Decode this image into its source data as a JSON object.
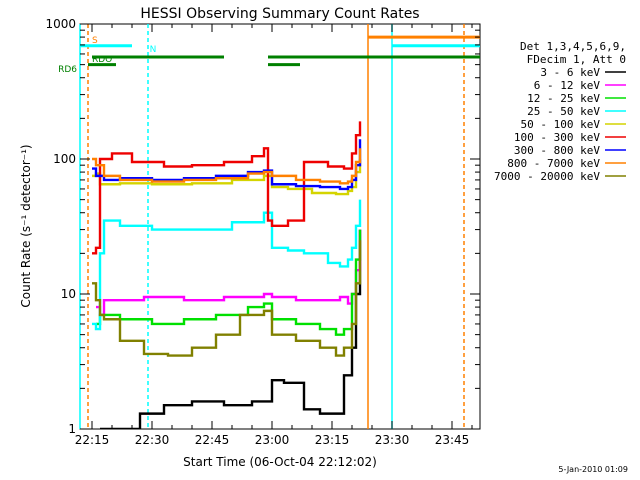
{
  "chart_data": {
    "type": "line",
    "title": "HESSI Observing Summary Count Rates",
    "xlabel": "Start Time (06-Oct-04 22:12:02)",
    "ylabel": "Count Rate (s⁻¹ detector⁻¹)",
    "y_scale": "log",
    "ylim": [
      1,
      1000
    ],
    "xlim": [
      "22:12",
      "23:52"
    ],
    "x_ticks": [
      "22:15",
      "22:30",
      "22:45",
      "23:00",
      "23:15",
      "23:30",
      "23:45"
    ],
    "y_ticks": [
      "1",
      "10",
      "100",
      "1000"
    ],
    "legend": {
      "position": "top-right",
      "header": [
        "Det 1,3,4,5,6,9,",
        "FDecim 1, Att 0"
      ]
    },
    "series": [
      {
        "name": "3 - 6 keV",
        "color": "#000000",
        "x": [
          "22:17",
          "22:20",
          "22:23",
          "22:27",
          "22:33",
          "22:40",
          "22:48",
          "22:55",
          "23:00",
          "23:03",
          "23:08",
          "23:12",
          "23:16",
          "23:18",
          "23:20",
          "23:21",
          "23:22"
        ],
        "y": [
          1.0,
          1.0,
          1.0,
          1.3,
          1.5,
          1.6,
          1.5,
          1.6,
          2.3,
          2.2,
          1.4,
          1.3,
          1.3,
          2.5,
          4.0,
          10.0,
          30.0
        ]
      },
      {
        "name": "6 - 12 keV",
        "color": "#ff00ff",
        "x": [
          "22:16",
          "22:17",
          "22:18",
          "22:22",
          "22:28",
          "22:38",
          "22:48",
          "22:58",
          "23:00",
          "23:06",
          "23:12",
          "23:17",
          "23:19",
          "23:20",
          "23:21",
          "23:22"
        ],
        "y": [
          8.0,
          7.0,
          9.0,
          9.0,
          9.5,
          9.0,
          9.5,
          10.0,
          9.5,
          9.0,
          9.0,
          9.5,
          8.5,
          10.0,
          15.0,
          30.0
        ]
      },
      {
        "name": "12 - 25 keV",
        "color": "#00e000",
        "x": [
          "22:16",
          "22:17",
          "22:18",
          "22:22",
          "22:30",
          "22:38",
          "22:46",
          "22:54",
          "22:58",
          "23:00",
          "23:06",
          "23:12",
          "23:16",
          "23:18",
          "23:20",
          "23:21",
          "23:22"
        ],
        "y": [
          6.0,
          7.0,
          7.0,
          6.5,
          6.0,
          6.5,
          7.0,
          8.0,
          8.5,
          6.5,
          6.0,
          5.5,
          5.0,
          5.5,
          10.0,
          18.0,
          30.0
        ]
      },
      {
        "name": "25 - 50 keV",
        "color": "#00ffff",
        "x": [
          "22:15",
          "22:16",
          "22:17",
          "22:18",
          "22:22",
          "22:30",
          "22:40",
          "22:50",
          "22:58",
          "23:00",
          "23:04",
          "23:08",
          "23:14",
          "23:17",
          "23:19",
          "23:20",
          "23:21",
          "23:22"
        ],
        "y": [
          6.0,
          5.5,
          20.0,
          35.0,
          32.0,
          30.0,
          30.0,
          34.0,
          40.0,
          22.0,
          21.0,
          20.0,
          17.0,
          16.0,
          18.0,
          22.0,
          32.0,
          50.0
        ]
      },
      {
        "name": "50 - 100 keV",
        "color": "#d4d400",
        "x": [
          "22:15",
          "22:16",
          "22:17",
          "22:22",
          "22:30",
          "22:40",
          "22:50",
          "22:58",
          "23:00",
          "23:04",
          "23:10",
          "23:16",
          "23:19",
          "23:20",
          "23:21",
          "23:22"
        ],
        "y": [
          75.0,
          78.0,
          65.0,
          66.0,
          65.0,
          66.0,
          70.0,
          75.0,
          62.0,
          60.0,
          56.0,
          55.0,
          58.0,
          62.0,
          80.0,
          100.0
        ]
      },
      {
        "name": "100 - 300 keV",
        "color": "#ee0000",
        "x": [
          "22:15",
          "22:16",
          "22:17",
          "22:20",
          "22:25",
          "22:33",
          "22:40",
          "22:48",
          "22:55",
          "22:58",
          "22:59",
          "23:00",
          "23:04",
          "23:08",
          "23:14",
          "23:18",
          "23:20",
          "23:21",
          "23:22"
        ],
        "y": [
          20.0,
          22.0,
          100.0,
          110.0,
          95.0,
          88.0,
          90.0,
          95.0,
          105.0,
          120.0,
          35.0,
          32.0,
          35.0,
          95.0,
          88.0,
          85.0,
          110.0,
          150.0,
          190.0
        ]
      },
      {
        "name": "300 - 800 keV",
        "color": "#0000ff",
        "x": [
          "22:15",
          "22:16",
          "22:18",
          "22:22",
          "22:30",
          "22:38",
          "22:46",
          "22:54",
          "22:58",
          "23:00",
          "23:06",
          "23:12",
          "23:17",
          "23:19",
          "23:20",
          "23:21",
          "23:22"
        ],
        "y": [
          85.0,
          75.0,
          70.0,
          72.0,
          70.0,
          72.0,
          75.0,
          80.0,
          82.0,
          65.0,
          63.0,
          62.0,
          60.0,
          62.0,
          70.0,
          90.0,
          140.0
        ]
      },
      {
        "name": "800 - 7000 keV",
        "color": "#ff8000",
        "x": [
          "22:15",
          "22:16",
          "22:18",
          "22:22",
          "22:30",
          "22:38",
          "22:46",
          "22:54",
          "22:58",
          "23:00",
          "23:06",
          "23:12",
          "23:17",
          "23:19",
          "23:20",
          "23:21",
          "23:22"
        ],
        "y": [
          100.0,
          90.0,
          75.0,
          70.0,
          68.0,
          70.0,
          72.0,
          78.0,
          80.0,
          75.0,
          70.0,
          68.0,
          66.0,
          68.0,
          75.0,
          95.0,
          120.0
        ]
      },
      {
        "name": "7000 - 20000 keV",
        "color": "#808000",
        "x": [
          "22:15",
          "22:16",
          "22:17",
          "22:18",
          "22:22",
          "22:28",
          "22:34",
          "22:40",
          "22:46",
          "22:52",
          "22:58",
          "23:00",
          "23:06",
          "23:12",
          "23:16",
          "23:18",
          "23:20",
          "23:21",
          "23:22"
        ],
        "y": [
          12.0,
          9.0,
          7.0,
          6.5,
          4.5,
          3.6,
          3.5,
          4.0,
          5.0,
          7.0,
          7.5,
          5.0,
          4.5,
          4.0,
          3.5,
          4.0,
          6.0,
          12.0,
          25.0
        ]
      }
    ],
    "flag_bars": [
      {
        "label": "S",
        "color": "#ff8000",
        "x0": "23:24",
        "x1": "23:52",
        "level": 800
      },
      {
        "label": "N",
        "color": "#00ffff",
        "x0": "22:12",
        "x1": "22:25",
        "level": 690
      },
      {
        "label": "N",
        "color": "#00ffff",
        "x0": "23:30",
        "x1": "23:52",
        "level": 690
      },
      {
        "label": "RDO",
        "color": "#008000",
        "x0": "22:15",
        "x1": "22:48",
        "level": 570
      },
      {
        "label": "RDO",
        "color": "#008000",
        "x0": "22:59",
        "x1": "23:52",
        "level": 570
      },
      {
        "label": "RD6",
        "color": "#008000",
        "x0": "22:14",
        "x1": "22:21",
        "level": 500
      },
      {
        "label": "RD6",
        "color": "#008000",
        "x0": "22:59",
        "x1": "23:07",
        "level": 500
      }
    ],
    "flag_labels": [
      {
        "text": "S",
        "color": "#ff8000"
      },
      {
        "text": "N",
        "color": "#00ffff"
      },
      {
        "text": "RDO",
        "color": "#008000"
      },
      {
        "text": "RD6",
        "color": "#008000"
      }
    ],
    "vertical_lines": [
      {
        "x": "22:12",
        "color": "#00ffff",
        "style": "solid"
      },
      {
        "x": "22:14",
        "color": "#ff8000",
        "style": "dashed"
      },
      {
        "x": "22:29",
        "color": "#00ffff",
        "style": "dashed"
      },
      {
        "x": "23:24",
        "color": "#ff8000",
        "style": "solid"
      },
      {
        "x": "23:30",
        "color": "#00ffff",
        "style": "solid"
      },
      {
        "x": "23:48",
        "color": "#ff8000",
        "style": "dashed"
      }
    ],
    "grid": false
  },
  "footer_timestamp": "5-Jan-2010 01:09"
}
